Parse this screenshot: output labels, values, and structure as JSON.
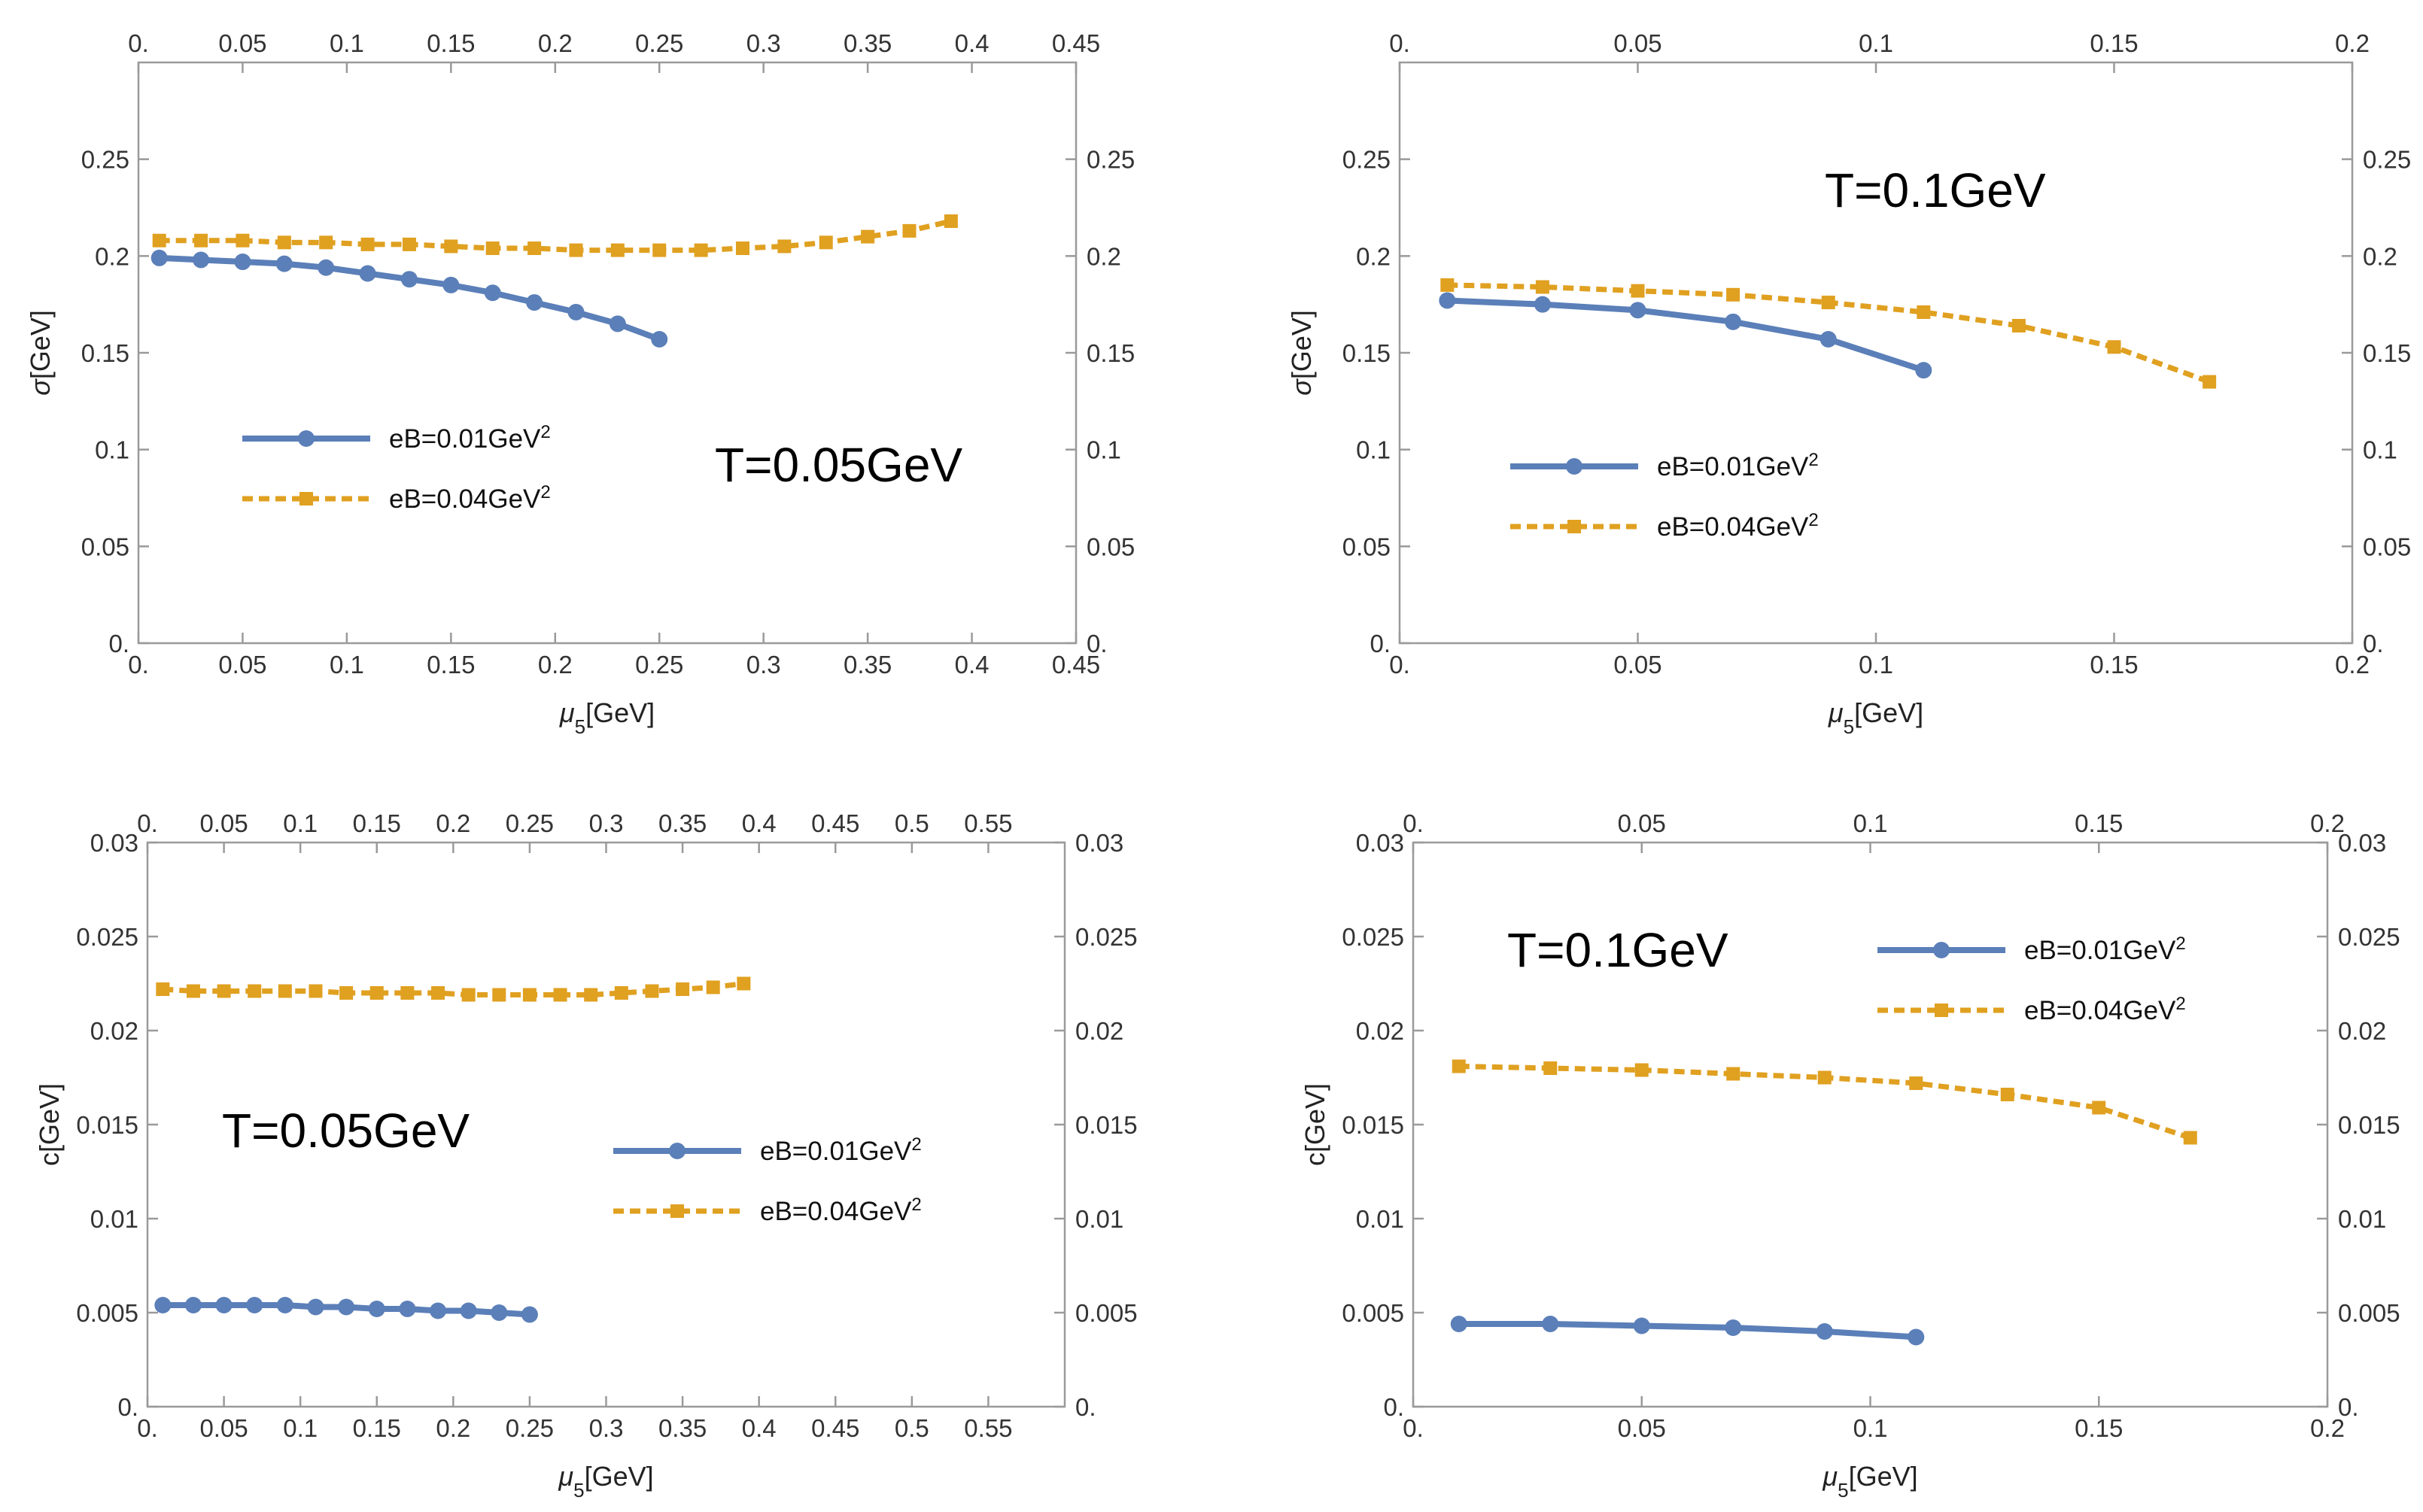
{
  "chart_data": [
    {
      "type": "line",
      "annotation": "T=0.05GeV",
      "xlabel": "μ5[GeV]",
      "ylabel": "σ[GeV]",
      "xlim": [
        0,
        0.45
      ],
      "ylim": [
        0,
        0.3
      ],
      "xticks": [
        "0.",
        "0.05",
        "0.1",
        "0.15",
        "0.2",
        "0.25",
        "0.3",
        "0.35",
        "0.4",
        "0.45"
      ],
      "yticks": [
        "0.",
        "0.05",
        "0.1",
        "0.15",
        "0.2",
        "0.25"
      ],
      "legend_position": "middle-left",
      "series": [
        {
          "name": "eB=0.01GeV²",
          "color": "#5b7fb8",
          "style": "solid-circle",
          "x": [
            0.01,
            0.03,
            0.05,
            0.07,
            0.09,
            0.11,
            0.13,
            0.15,
            0.17,
            0.19,
            0.21,
            0.23,
            0.25
          ],
          "y": [
            0.199,
            0.198,
            0.197,
            0.196,
            0.194,
            0.191,
            0.188,
            0.185,
            0.181,
            0.176,
            0.171,
            0.165,
            0.157
          ]
        },
        {
          "name": "eB=0.04GeV²",
          "color": "#e0a020",
          "style": "dashed-square",
          "x": [
            0.01,
            0.03,
            0.05,
            0.07,
            0.09,
            0.11,
            0.13,
            0.15,
            0.17,
            0.19,
            0.21,
            0.23,
            0.25,
            0.27,
            0.29,
            0.31,
            0.33,
            0.35,
            0.37,
            0.39
          ],
          "y": [
            0.208,
            0.208,
            0.208,
            0.207,
            0.207,
            0.206,
            0.206,
            0.205,
            0.204,
            0.204,
            0.203,
            0.203,
            0.203,
            0.203,
            0.204,
            0.205,
            0.207,
            0.21,
            0.213,
            0.218
          ]
        }
      ]
    },
    {
      "type": "line",
      "annotation": "T=0.1GeV",
      "xlabel": "μ5[GeV]",
      "ylabel": "σ[GeV]",
      "xlim": [
        0,
        0.2
      ],
      "ylim": [
        0,
        0.3
      ],
      "xticks": [
        "0.",
        "0.05",
        "0.1",
        "0.15",
        "0.2"
      ],
      "yticks": [
        "0.",
        "0.05",
        "0.1",
        "0.15",
        "0.2",
        "0.25"
      ],
      "legend_position": "middle-left",
      "series": [
        {
          "name": "eB=0.01GeV²",
          "color": "#5b7fb8",
          "style": "solid-circle",
          "x": [
            0.01,
            0.03,
            0.05,
            0.07,
            0.09,
            0.11
          ],
          "y": [
            0.177,
            0.175,
            0.172,
            0.166,
            0.157,
            0.141
          ]
        },
        {
          "name": "eB=0.04GeV²",
          "color": "#e0a020",
          "style": "dashed-square",
          "x": [
            0.01,
            0.03,
            0.05,
            0.07,
            0.09,
            0.11,
            0.13,
            0.15,
            0.17
          ],
          "y": [
            0.185,
            0.184,
            0.182,
            0.18,
            0.176,
            0.171,
            0.164,
            0.153,
            0.135
          ]
        }
      ]
    },
    {
      "type": "line",
      "annotation": "T=0.05GeV",
      "xlabel": "μ5[GeV]",
      "ylabel": "c[GeV]",
      "xlim": [
        0,
        0.6
      ],
      "ylim": [
        0,
        0.03
      ],
      "xticks": [
        "0.",
        "0.05",
        "0.1",
        "0.15",
        "0.2",
        "0.25",
        "0.3",
        "0.35",
        "0.4",
        "0.45",
        "0.5",
        "0.55"
      ],
      "yticks": [
        "0.",
        "0.005",
        "0.01",
        "0.015",
        "0.02",
        "0.025",
        "0.03"
      ],
      "legend_position": "middle-right",
      "series": [
        {
          "name": "eB=0.01GeV²",
          "color": "#5b7fb8",
          "style": "solid-circle",
          "x": [
            0.01,
            0.03,
            0.05,
            0.07,
            0.09,
            0.11,
            0.13,
            0.15,
            0.17,
            0.19,
            0.21,
            0.23,
            0.25
          ],
          "y": [
            0.0054,
            0.0054,
            0.0054,
            0.0054,
            0.0054,
            0.0053,
            0.0053,
            0.0052,
            0.0052,
            0.0051,
            0.0051,
            0.005,
            0.0049
          ]
        },
        {
          "name": "eB=0.04GeV²",
          "color": "#e0a020",
          "style": "dashed-square",
          "x": [
            0.01,
            0.03,
            0.05,
            0.07,
            0.09,
            0.11,
            0.13,
            0.15,
            0.17,
            0.19,
            0.21,
            0.23,
            0.25,
            0.27,
            0.29,
            0.31,
            0.33,
            0.35,
            0.37,
            0.39
          ],
          "y": [
            0.0222,
            0.0221,
            0.0221,
            0.0221,
            0.0221,
            0.0221,
            0.022,
            0.022,
            0.022,
            0.022,
            0.0219,
            0.0219,
            0.0219,
            0.0219,
            0.0219,
            0.022,
            0.0221,
            0.0222,
            0.0223,
            0.0225
          ]
        }
      ]
    },
    {
      "type": "line",
      "annotation": "T=0.1GeV",
      "xlabel": "μ5[GeV]",
      "ylabel": "c[GeV]",
      "xlim": [
        0,
        0.2
      ],
      "ylim": [
        0,
        0.03
      ],
      "xticks": [
        "0.",
        "0.05",
        "0.1",
        "0.15",
        "0.2"
      ],
      "yticks": [
        "0.",
        "0.005",
        "0.01",
        "0.015",
        "0.02",
        "0.025",
        "0.03"
      ],
      "legend_position": "top-right",
      "series": [
        {
          "name": "eB=0.01GeV²",
          "color": "#5b7fb8",
          "style": "solid-circle",
          "x": [
            0.01,
            0.03,
            0.05,
            0.07,
            0.09,
            0.11
          ],
          "y": [
            0.0044,
            0.0044,
            0.0043,
            0.0042,
            0.004,
            0.0037
          ]
        },
        {
          "name": "eB=0.04GeV²",
          "color": "#e0a020",
          "style": "dashed-square",
          "x": [
            0.01,
            0.03,
            0.05,
            0.07,
            0.09,
            0.11,
            0.13,
            0.15,
            0.17
          ],
          "y": [
            0.0181,
            0.018,
            0.0179,
            0.0177,
            0.0175,
            0.0172,
            0.0166,
            0.0159,
            0.0143
          ]
        }
      ]
    }
  ]
}
